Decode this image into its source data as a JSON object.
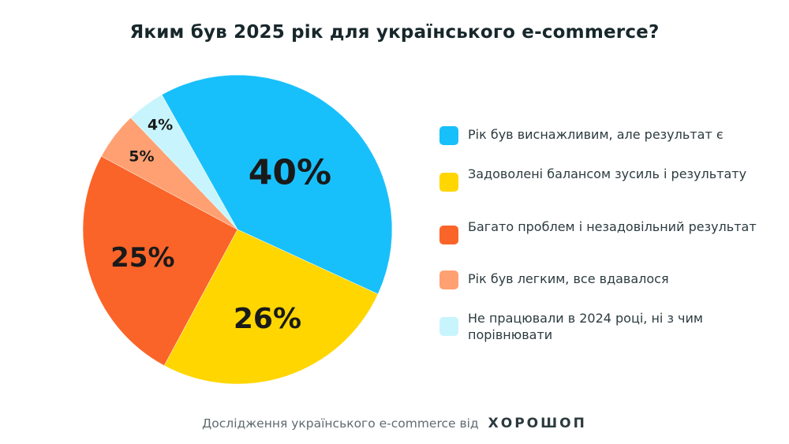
{
  "chart_data": {
    "type": "pie",
    "title": "Яким був 2025 рік для українського e-commerce?",
    "start_angle_deg": -29.3,
    "direction": "clockwise",
    "legend_position": "right",
    "slices": [
      {
        "label": "Рік був виснажливим, але результат є",
        "value": 40,
        "data_label": "40%",
        "color": "#18C0FB"
      },
      {
        "label": "Задоволені балансом зусиль і результату",
        "value": 26,
        "data_label": "26%",
        "color": "#FFD600"
      },
      {
        "label": "Багато проблем і незадовільний результат",
        "value": 25,
        "data_label": "25%",
        "color": "#FB6428"
      },
      {
        "label": "Рік був легким, все вдавалося",
        "value": 5,
        "data_label": "5%",
        "color": "#FFA072"
      },
      {
        "label": "Не працювали в 2024 році, ні з чим порівнювати",
        "value": 4,
        "data_label": "4%",
        "color": "#C8F5FD"
      }
    ]
  },
  "footer": {
    "text": "Дослідження українського e-commerce від",
    "brand": "ХОРОШОП"
  }
}
